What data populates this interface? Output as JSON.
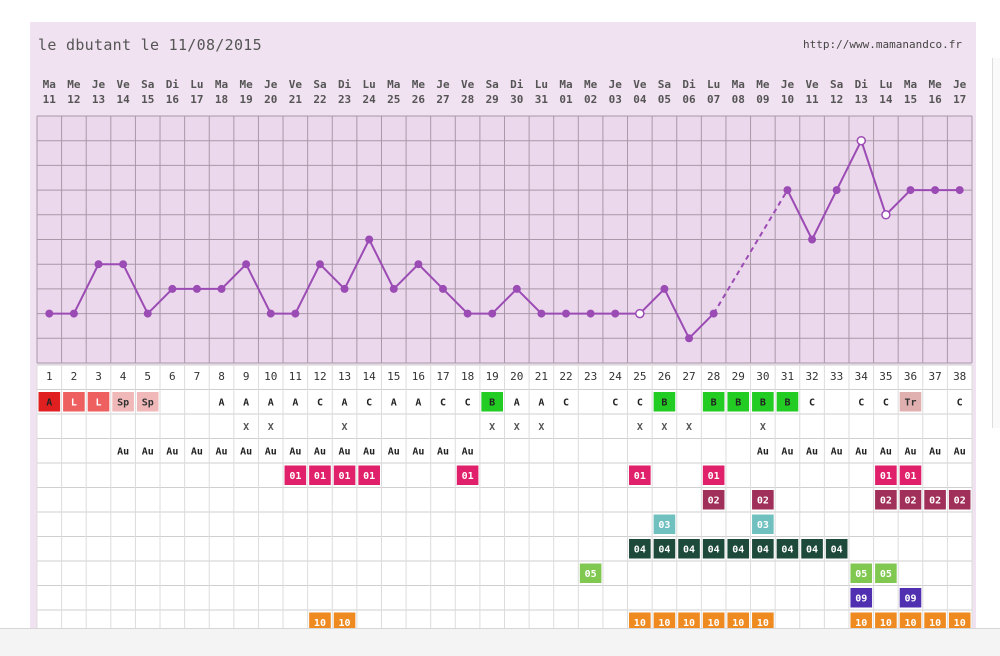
{
  "header": {
    "title": "le dbutant le 11/08/2015",
    "url": "http://www.mamanandco.fr"
  },
  "chart_data": {
    "type": "line",
    "days_of_week": [
      "Ma",
      "Me",
      "Je",
      "Ve",
      "Sa",
      "Di",
      "Lu",
      "Ma",
      "Me",
      "Je",
      "Ve",
      "Sa",
      "Di",
      "Lu",
      "Ma",
      "Me",
      "Je",
      "Ve",
      "Sa",
      "Di",
      "Lu",
      "Ma",
      "Me",
      "Je",
      "Ve",
      "Sa",
      "Di",
      "Lu",
      "Ma",
      "Me",
      "Je",
      "Ve",
      "Sa",
      "Di",
      "Lu",
      "Ma",
      "Me",
      "Je"
    ],
    "dates": [
      "11",
      "12",
      "13",
      "14",
      "15",
      "16",
      "17",
      "18",
      "19",
      "20",
      "21",
      "22",
      "23",
      "24",
      "25",
      "26",
      "27",
      "28",
      "29",
      "30",
      "31",
      "01",
      "02",
      "03",
      "04",
      "05",
      "06",
      "07",
      "08",
      "09",
      "10",
      "11",
      "12",
      "13",
      "14",
      "15",
      "16",
      "17"
    ],
    "cycle_days": [
      "1",
      "2",
      "3",
      "4",
      "5",
      "6",
      "7",
      "8",
      "9",
      "10",
      "11",
      "12",
      "13",
      "14",
      "15",
      "16",
      "17",
      "18",
      "19",
      "20",
      "21",
      "22",
      "23",
      "24",
      "25",
      "26",
      "27",
      "28",
      "29",
      "30",
      "31",
      "32",
      "33",
      "34",
      "35",
      "36",
      "37",
      "38"
    ],
    "temperature_level": [
      2,
      2,
      4,
      4,
      2,
      3,
      3,
      3,
      4,
      2,
      2,
      4,
      3,
      5,
      3,
      4,
      3,
      2,
      2,
      3,
      2,
      2,
      2,
      2,
      2,
      3,
      1,
      2,
      null,
      null,
      7,
      5,
      7,
      9,
      6,
      7,
      7,
      7
    ],
    "estimated_points": [
      24,
      33,
      34
    ],
    "dashed_segment": [
      27,
      30
    ],
    "rows": [
      {
        "cells": {
          "0": {
            "t": "A",
            "bg": "#e02020",
            "fg": "#222"
          },
          "1": {
            "t": "L",
            "bg": "#ee6060",
            "fg": "#fff"
          },
          "2": {
            "t": "L",
            "bg": "#ee6060",
            "fg": "#fff"
          },
          "3": {
            "t": "Sp",
            "bg": "#f0b8b8",
            "fg": "#333"
          },
          "4": {
            "t": "Sp",
            "bg": "#f0b8b8",
            "fg": "#333"
          },
          "7": {
            "t": "A"
          },
          "8": {
            "t": "A"
          },
          "9": {
            "t": "A"
          },
          "10": {
            "t": "A"
          },
          "11": {
            "t": "C"
          },
          "12": {
            "t": "A"
          },
          "13": {
            "t": "C"
          },
          "14": {
            "t": "A"
          },
          "15": {
            "t": "A"
          },
          "16": {
            "t": "C"
          },
          "17": {
            "t": "C"
          },
          "18": {
            "t": "B",
            "bg": "#22cc22",
            "fg": "#222"
          },
          "19": {
            "t": "A"
          },
          "20": {
            "t": "A"
          },
          "21": {
            "t": "C"
          },
          "23": {
            "t": "C"
          },
          "24": {
            "t": "C"
          },
          "25": {
            "t": "B",
            "bg": "#22cc22",
            "fg": "#222"
          },
          "27": {
            "t": "B",
            "bg": "#22cc22",
            "fg": "#222"
          },
          "28": {
            "t": "B",
            "bg": "#22cc22",
            "fg": "#222"
          },
          "29": {
            "t": "B",
            "bg": "#22cc22",
            "fg": "#222"
          },
          "30": {
            "t": "B",
            "bg": "#22cc22",
            "fg": "#222"
          },
          "31": {
            "t": "C"
          },
          "33": {
            "t": "C"
          },
          "34": {
            "t": "C"
          },
          "35": {
            "t": "Tr",
            "bg": "#e0b0b0",
            "fg": "#333"
          },
          "37": {
            "t": "C"
          }
        }
      },
      {
        "cells": {
          "8": {
            "t": "X",
            "fg": "#555"
          },
          "9": {
            "t": "X",
            "fg": "#555"
          },
          "12": {
            "t": "X",
            "fg": "#555"
          },
          "18": {
            "t": "X",
            "fg": "#555"
          },
          "19": {
            "t": "X",
            "fg": "#555"
          },
          "20": {
            "t": "X",
            "fg": "#555"
          },
          "24": {
            "t": "X",
            "fg": "#555"
          },
          "25": {
            "t": "X",
            "fg": "#555"
          },
          "26": {
            "t": "X",
            "fg": "#555"
          },
          "29": {
            "t": "X",
            "fg": "#555"
          }
        }
      },
      {
        "cells": {
          "3": {
            "t": "Au"
          },
          "4": {
            "t": "Au"
          },
          "5": {
            "t": "Au"
          },
          "6": {
            "t": "Au"
          },
          "7": {
            "t": "Au"
          },
          "8": {
            "t": "Au"
          },
          "9": {
            "t": "Au"
          },
          "10": {
            "t": "Au"
          },
          "11": {
            "t": "Au"
          },
          "12": {
            "t": "Au"
          },
          "13": {
            "t": "Au"
          },
          "14": {
            "t": "Au"
          },
          "15": {
            "t": "Au"
          },
          "16": {
            "t": "Au"
          },
          "17": {
            "t": "Au"
          },
          "29": {
            "t": "Au"
          },
          "30": {
            "t": "Au"
          },
          "31": {
            "t": "Au"
          },
          "32": {
            "t": "Au"
          },
          "33": {
            "t": "Au"
          },
          "34": {
            "t": "Au"
          },
          "35": {
            "t": "Au"
          },
          "36": {
            "t": "Au"
          },
          "37": {
            "t": "Au"
          }
        }
      },
      {
        "cells": {
          "10": {
            "t": "01",
            "bg": "#e0206a",
            "fg": "#fff"
          },
          "11": {
            "t": "01",
            "bg": "#e0206a",
            "fg": "#fff"
          },
          "12": {
            "t": "01",
            "bg": "#e0206a",
            "fg": "#fff"
          },
          "13": {
            "t": "01",
            "bg": "#e0206a",
            "fg": "#fff"
          },
          "17": {
            "t": "01",
            "bg": "#e0206a",
            "fg": "#fff"
          },
          "24": {
            "t": "01",
            "bg": "#e0206a",
            "fg": "#fff"
          },
          "27": {
            "t": "01",
            "bg": "#e0206a",
            "fg": "#fff"
          },
          "34": {
            "t": "01",
            "bg": "#e0206a",
            "fg": "#fff"
          },
          "35": {
            "t": "01",
            "bg": "#e0206a",
            "fg": "#fff"
          }
        }
      },
      {
        "cells": {
          "27": {
            "t": "02",
            "bg": "#a0305a",
            "fg": "#fff"
          },
          "29": {
            "t": "02",
            "bg": "#a0305a",
            "fg": "#fff"
          },
          "34": {
            "t": "02",
            "bg": "#a0305a",
            "fg": "#fff"
          },
          "35": {
            "t": "02",
            "bg": "#a0305a",
            "fg": "#fff"
          },
          "36": {
            "t": "02",
            "bg": "#a0305a",
            "fg": "#fff"
          },
          "37": {
            "t": "02",
            "bg": "#a0305a",
            "fg": "#fff"
          }
        }
      },
      {
        "cells": {
          "25": {
            "t": "03",
            "bg": "#70c0c0",
            "fg": "#fff"
          },
          "29": {
            "t": "03",
            "bg": "#70c0c0",
            "fg": "#fff"
          }
        }
      },
      {
        "cells": {
          "24": {
            "t": "04",
            "bg": "#1e4a3c",
            "fg": "#fff"
          },
          "25": {
            "t": "04",
            "bg": "#1e4a3c",
            "fg": "#fff"
          },
          "26": {
            "t": "04",
            "bg": "#1e4a3c",
            "fg": "#fff"
          },
          "27": {
            "t": "04",
            "bg": "#1e4a3c",
            "fg": "#fff"
          },
          "28": {
            "t": "04",
            "bg": "#1e4a3c",
            "fg": "#fff"
          },
          "29": {
            "t": "04",
            "bg": "#1e4a3c",
            "fg": "#fff"
          },
          "30": {
            "t": "04",
            "bg": "#1e4a3c",
            "fg": "#fff"
          },
          "31": {
            "t": "04",
            "bg": "#1e4a3c",
            "fg": "#fff"
          },
          "32": {
            "t": "04",
            "bg": "#1e4a3c",
            "fg": "#fff"
          }
        }
      },
      {
        "cells": {
          "22": {
            "t": "05",
            "bg": "#80c850",
            "fg": "#fff"
          },
          "33": {
            "t": "05",
            "bg": "#80c850",
            "fg": "#fff"
          },
          "34": {
            "t": "05",
            "bg": "#80c850",
            "fg": "#fff"
          }
        }
      },
      {
        "cells": {
          "33": {
            "t": "09",
            "bg": "#5030b0",
            "fg": "#fff"
          },
          "35": {
            "t": "09",
            "bg": "#5030b0",
            "fg": "#fff"
          }
        }
      },
      {
        "cells": {
          "11": {
            "t": "10",
            "bg": "#ef8a20",
            "fg": "#fff"
          },
          "12": {
            "t": "10",
            "bg": "#ef8a20",
            "fg": "#fff"
          },
          "24": {
            "t": "10",
            "bg": "#ef8a20",
            "fg": "#fff"
          },
          "25": {
            "t": "10",
            "bg": "#ef8a20",
            "fg": "#fff"
          },
          "26": {
            "t": "10",
            "bg": "#ef8a20",
            "fg": "#fff"
          },
          "27": {
            "t": "10",
            "bg": "#ef8a20",
            "fg": "#fff"
          },
          "28": {
            "t": "10",
            "bg": "#ef8a20",
            "fg": "#fff"
          },
          "29": {
            "t": "10",
            "bg": "#ef8a20",
            "fg": "#fff"
          },
          "33": {
            "t": "10",
            "bg": "#ef8a20",
            "fg": "#fff"
          },
          "34": {
            "t": "10",
            "bg": "#ef8a20",
            "fg": "#fff"
          },
          "35": {
            "t": "10",
            "bg": "#ef8a20",
            "fg": "#fff"
          },
          "36": {
            "t": "10",
            "bg": "#ef8a20",
            "fg": "#fff"
          },
          "37": {
            "t": "10",
            "bg": "#ef8a20",
            "fg": "#fff"
          }
        }
      }
    ],
    "colors": {
      "line": "#9b4bb4",
      "grid": "#a898a8",
      "plot_bg": "#ecd8ec"
    }
  }
}
